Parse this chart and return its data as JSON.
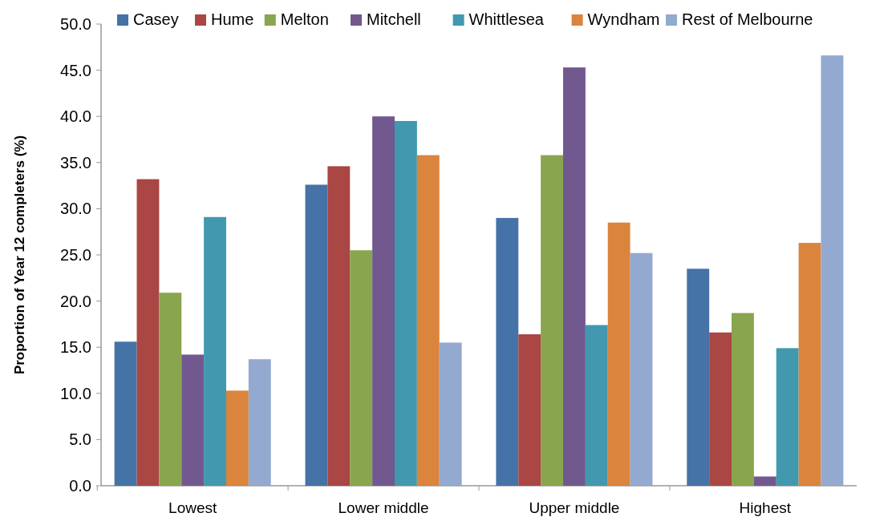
{
  "chart_data": {
    "type": "bar",
    "ylabel": "Proportion of Year 12 completers (%)",
    "categories": [
      "Lowest",
      "Lower middle",
      "Upper middle",
      "Highest"
    ],
    "series": [
      {
        "name": "Casey",
        "color": "#4572a7",
        "values": [
          15.6,
          32.6,
          29.0,
          23.5
        ]
      },
      {
        "name": "Hume",
        "color": "#aa4643",
        "values": [
          33.2,
          34.6,
          16.4,
          16.6
        ]
      },
      {
        "name": "Melton",
        "color": "#89a54e",
        "values": [
          20.9,
          25.5,
          35.8,
          18.7
        ]
      },
      {
        "name": "Mitchell",
        "color": "#71588f",
        "values": [
          14.2,
          40.0,
          45.3,
          1.0
        ]
      },
      {
        "name": "Whittlesea",
        "color": "#4198af",
        "values": [
          29.1,
          39.5,
          17.4,
          14.9
        ]
      },
      {
        "name": "Wyndham",
        "color": "#db843d",
        "values": [
          10.3,
          35.8,
          28.5,
          26.3
        ]
      },
      {
        "name": "Rest of Melbourne",
        "color": "#93a9cf",
        "values": [
          13.7,
          15.5,
          25.2,
          46.6
        ]
      }
    ],
    "ylim": [
      0,
      50
    ],
    "yticks": [
      {
        "value": 0,
        "label": "0.0"
      },
      {
        "value": 5,
        "label": "5.0"
      },
      {
        "value": 10,
        "label": "10.0"
      },
      {
        "value": 15,
        "label": "15.0"
      },
      {
        "value": 20,
        "label": "20.0"
      },
      {
        "value": 25,
        "label": "25.0"
      },
      {
        "value": 30,
        "label": "30.0"
      },
      {
        "value": 35,
        "label": "35.0"
      },
      {
        "value": 40,
        "label": "40.0"
      },
      {
        "value": 45,
        "label": "45.0"
      },
      {
        "value": 50,
        "label": "50.0"
      }
    ],
    "grid": false,
    "legend": "top"
  }
}
